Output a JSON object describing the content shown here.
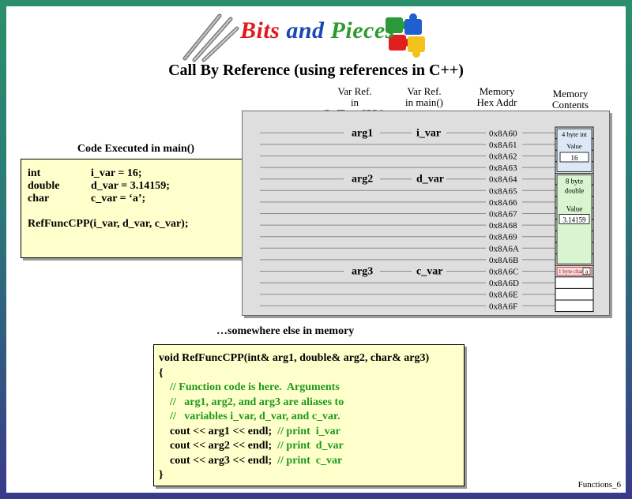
{
  "header": {
    "brand_word1": "Bits",
    "brand_word2": "and",
    "brand_word3": "Pieces",
    "title": "Call By Reference (using references in C++)"
  },
  "columns": {
    "ref_func": [
      "Var Ref.",
      "in RefFuncCPP()"
    ],
    "ref_main": [
      "Var Ref.",
      "in main()"
    ],
    "mem_addr": [
      "Memory",
      "Hex Addr"
    ],
    "mem_contents": [
      "Memory",
      "Contents"
    ]
  },
  "main_code": {
    "caption": "Code Executed in main()",
    "lines": [
      {
        "type": "int",
        "decl": "i_var = 16;"
      },
      {
        "type": "double",
        "decl": "d_var = 3.14159;"
      },
      {
        "type": "char",
        "decl": "c_var = ‘a’;"
      }
    ],
    "call": "RefFuncCPP(i_var, d_var, c_var);"
  },
  "memory": {
    "addresses": [
      "0x8A60",
      "0x8A61",
      "0x8A62",
      "0x8A63",
      "0x8A64",
      "0x8A65",
      "0x8A66",
      "0x8A67",
      "0x8A68",
      "0x8A69",
      "0x8A6A",
      "0x8A6B",
      "0x8A6C",
      "0x8A6D",
      "0x8A6E",
      "0x8A6F"
    ],
    "refs": [
      {
        "func_name": "arg1",
        "main_name": "i_var",
        "row": 0
      },
      {
        "func_name": "arg2",
        "main_name": "d_var",
        "row": 4
      },
      {
        "func_name": "arg3",
        "main_name": "c_var",
        "row": 12
      }
    ],
    "int_block": {
      "label": "4 byte int",
      "value_label": "Value",
      "value": "16"
    },
    "double_block": {
      "label1": "8 byte",
      "label2": "double",
      "value_label": "Value",
      "value": "3.14159"
    },
    "char_block": {
      "label": "1 byte char",
      "value": "a"
    },
    "colors": {
      "int_fill": "#dce8f6",
      "double_fill": "#d8f5d0",
      "char_fill": "#f6dede"
    }
  },
  "somewhere_caption": "…somewhere else in memory",
  "function_code": {
    "lines": [
      {
        "text": "void RefFuncCPP(int& arg1, double& arg2, char& arg3)",
        "style": "code"
      },
      {
        "text": "{",
        "style": "code"
      },
      {
        "text": "    // Function code is here.  Arguments",
        "style": "comment"
      },
      {
        "text": "    //   arg1, arg2, and arg3 are aliases to",
        "style": "comment"
      },
      {
        "text": "    //   variables i_var, d_var, and c_var.",
        "style": "comment"
      },
      {
        "text": "    cout << arg1 << endl;  ",
        "comment": "// print  i_var",
        "style": "mixed"
      },
      {
        "text": "    cout << arg2 << endl;  ",
        "comment": "// print  d_var",
        "style": "mixed"
      },
      {
        "text": "    cout << arg3 << endl;  ",
        "comment": "// print  c_var",
        "style": "mixed"
      },
      {
        "text": "}",
        "style": "code"
      }
    ]
  },
  "footer": "Functions_6"
}
